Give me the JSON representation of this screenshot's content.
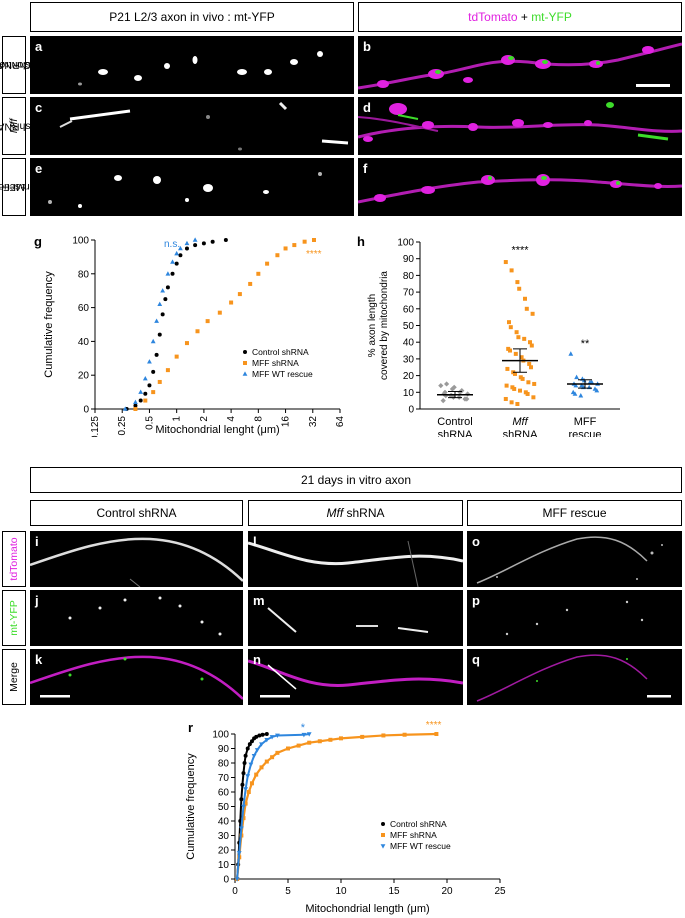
{
  "top": {
    "left_header": "P21 L2/3 axon in vivo : mt-YFP",
    "right_header_parts": [
      "tdTomato",
      " + ",
      "mt-YFP"
    ],
    "rows": [
      {
        "label_lines": [
          "Control",
          "shRNA"
        ],
        "left_panel": "a",
        "right_panel": "b"
      },
      {
        "label_lines": [
          "Mff",
          "shRNA"
        ],
        "left_panel": "c",
        "right_panel": "d"
      },
      {
        "label_lines": [
          "MFF",
          "rescue"
        ],
        "left_panel": "e",
        "right_panel": "f"
      }
    ]
  },
  "colors": {
    "control": "#000000",
    "mff_shrna": "#f7941d",
    "rescue": "#2e86de",
    "magenta": "#e022e0",
    "green": "#3ddc2a"
  },
  "chart_g": {
    "panel_letter": "g",
    "chart_data": {
      "type": "line",
      "title": "",
      "xlabel": "Mitochondrial lenght (μm)",
      "ylabel": "Cumulative frequency",
      "x_scale": "log2",
      "xlim": [
        0.125,
        64
      ],
      "ylim": [
        0,
        100
      ],
      "xticks": [
        "0.125",
        "0.25",
        "0.5",
        "1",
        "2",
        "4",
        "8",
        "16",
        "32",
        "64"
      ],
      "yticks": [
        0,
        20,
        40,
        60,
        80,
        100
      ],
      "series": [
        {
          "name": "Control shRNA",
          "x": [
            0.28,
            0.35,
            0.4,
            0.45,
            0.5,
            0.55,
            0.6,
            0.65,
            0.7,
            0.75,
            0.8,
            0.9,
            1.0,
            1.1,
            1.3,
            1.6,
            2.0,
            2.5,
            3.5
          ],
          "y": [
            0,
            2,
            5,
            9,
            14,
            22,
            32,
            44,
            56,
            65,
            72,
            80,
            86,
            91,
            95,
            97,
            98,
            99,
            100
          ]
        },
        {
          "name": "MFF shRNA",
          "x": [
            0.35,
            0.45,
            0.55,
            0.65,
            0.8,
            1.0,
            1.3,
            1.7,
            2.2,
            3.0,
            4.0,
            5.0,
            6.5,
            8.0,
            10.0,
            13.0,
            16.0,
            20.0,
            26.0,
            33.0
          ],
          "y": [
            0,
            5,
            10,
            16,
            23,
            31,
            39,
            46,
            52,
            57,
            63,
            68,
            74,
            80,
            86,
            91,
            95,
            97,
            99,
            100
          ]
        },
        {
          "name": "MFF WT rescue",
          "x": [
            0.27,
            0.35,
            0.4,
            0.45,
            0.5,
            0.55,
            0.6,
            0.65,
            0.7,
            0.8,
            0.9,
            1.0,
            1.1,
            1.3,
            1.6
          ],
          "y": [
            0,
            4,
            10,
            18,
            28,
            40,
            52,
            62,
            70,
            80,
            87,
            92,
            95,
            98,
            100
          ]
        }
      ],
      "annotations": [
        {
          "text": "n.s.",
          "color": "#2e86de"
        },
        {
          "text": "****",
          "color": "#f7941d"
        }
      ],
      "legend": [
        "Control shRNA",
        "MFF shRNA",
        "MFF WT rescue"
      ],
      "legend_position": "bottom-right"
    }
  },
  "chart_h": {
    "panel_letter": "h",
    "chart_data": {
      "type": "scatter",
      "ylabel_lines": [
        "% axon length",
        "covered by mitochondria"
      ],
      "ylim": [
        0,
        100
      ],
      "yticks": [
        0,
        10,
        20,
        30,
        40,
        50,
        60,
        70,
        80,
        90,
        100
      ],
      "categories": [
        {
          "lines": [
            "Control",
            "shRNA"
          ],
          "italic_first": false
        },
        {
          "lines": [
            "Mff",
            "shRNA"
          ],
          "italic_first": true
        },
        {
          "lines": [
            "MFF",
            "rescue"
          ],
          "italic_first": false
        }
      ],
      "groups": [
        {
          "name": "Control shRNA",
          "mean": 8.5,
          "sem_low": 6.8,
          "sem_high": 10.5,
          "values": [
            14,
            15,
            12,
            13,
            10,
            11,
            9,
            9,
            8,
            8,
            7,
            7,
            6,
            6,
            5,
            10,
            8
          ]
        },
        {
          "name": "Mff shRNA",
          "mean": 29,
          "sem_low": 22,
          "sem_high": 36,
          "values": [
            88,
            83,
            76,
            72,
            66,
            60,
            57,
            52,
            49,
            46,
            43,
            42,
            40,
            38,
            36,
            35,
            33,
            31,
            29,
            27,
            25,
            24,
            22,
            21,
            19,
            18,
            16,
            15,
            14,
            13,
            12,
            11,
            10,
            9,
            7,
            6,
            4,
            3
          ]
        },
        {
          "name": "MFF rescue",
          "mean": 15,
          "sem_low": 12.5,
          "sem_high": 17.5,
          "values": [
            33,
            19,
            18,
            17,
            16,
            16,
            15,
            15,
            14,
            14,
            13,
            13,
            12,
            11,
            10,
            9,
            8
          ]
        }
      ],
      "annotations": [
        "****",
        "**"
      ]
    }
  },
  "vitro": {
    "header": "21 days in vitro axon",
    "columns": [
      {
        "title_parts": [
          "",
          "Control shRNA"
        ],
        "panels": [
          "i",
          "j",
          "k"
        ]
      },
      {
        "title_parts": [
          "Mff",
          " shRNA"
        ],
        "panels": [
          "l",
          "m",
          "n"
        ]
      },
      {
        "title_parts": [
          "",
          "MFF rescue"
        ],
        "panels": [
          "o",
          "p",
          "q"
        ]
      }
    ],
    "row_labels": [
      "tdTomato",
      "mt-YFP",
      "Merge"
    ]
  },
  "chart_r": {
    "panel_letter": "r",
    "chart_data": {
      "type": "line",
      "xlabel": "Mitochondrial length (μm)",
      "ylabel": "Cumulative frequency",
      "xlim": [
        0,
        25
      ],
      "ylim": [
        0,
        100
      ],
      "xticks": [
        0,
        5,
        10,
        15,
        20,
        25
      ],
      "yticks": [
        0,
        10,
        20,
        30,
        40,
        50,
        60,
        70,
        80,
        90,
        100
      ],
      "series": [
        {
          "name": "Control shRNA",
          "x": [
            0.2,
            0.3,
            0.4,
            0.5,
            0.6,
            0.7,
            0.8,
            0.9,
            1.0,
            1.2,
            1.4,
            1.6,
            1.8,
            2.0,
            2.3,
            2.6,
            3.0
          ],
          "y": [
            0,
            10,
            25,
            40,
            55,
            65,
            73,
            80,
            85,
            90,
            93,
            95,
            97,
            98,
            99,
            99.5,
            100
          ]
        },
        {
          "name": "MFF shRNA",
          "x": [
            0.2,
            0.4,
            0.6,
            0.8,
            1.0,
            1.3,
            1.6,
            2.0,
            2.5,
            3.0,
            3.5,
            4.0,
            5.0,
            6.0,
            7.0,
            8.0,
            9.0,
            10.0,
            12.0,
            14.0,
            16.0,
            19.0
          ],
          "y": [
            0,
            15,
            30,
            42,
            52,
            60,
            66,
            72,
            77,
            81,
            84,
            87,
            90,
            92,
            94,
            95,
            96,
            97,
            98,
            99,
            99.5,
            100
          ]
        },
        {
          "name": "MFF WT rescue",
          "x": [
            0.2,
            0.4,
            0.6,
            0.8,
            1.0,
            1.2,
            1.5,
            1.8,
            2.1,
            2.5,
            3.0,
            3.5,
            4.0,
            6.5,
            7.0
          ],
          "y": [
            0,
            18,
            35,
            50,
            62,
            71,
            79,
            85,
            89,
            93,
            96,
            98,
            99,
            99.5,
            100
          ]
        }
      ],
      "annotations": [
        {
          "text": "*",
          "color": "#2e86de"
        },
        {
          "text": "****",
          "color": "#f7941d"
        }
      ],
      "legend": [
        "Control shRNA",
        "MFF shRNA",
        "MFF WT rescue"
      ],
      "legend_position": "bottom-right"
    }
  }
}
